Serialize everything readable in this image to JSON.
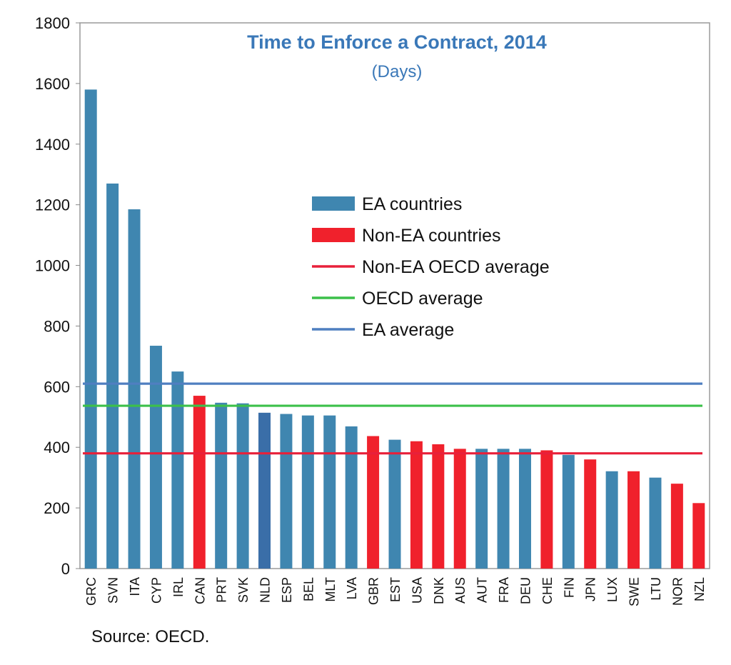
{
  "chart_data": {
    "type": "bar",
    "title": "Time to Enforce a Contract, 2014",
    "subtitle": "(Days)",
    "source": "Source: OECD.",
    "ylim": [
      0,
      1800
    ],
    "yticks": [
      0,
      200,
      400,
      600,
      800,
      1000,
      1200,
      1400,
      1600,
      1800
    ],
    "grid": false,
    "legend_position": "center-right",
    "categories": [
      "GRC",
      "SVN",
      "ITA",
      "CYP",
      "IRL",
      "CAN",
      "PRT",
      "SVK",
      "NLD",
      "ESP",
      "BEL",
      "MLT",
      "LVA",
      "GBR",
      "EST",
      "USA",
      "DNK",
      "AUS",
      "AUT",
      "FRA",
      "DEU",
      "CHE",
      "FIN",
      "JPN",
      "LUX",
      "SWE",
      "LTU",
      "NOR",
      "NZL"
    ],
    "values": [
      1580,
      1270,
      1185,
      735,
      650,
      570,
      547,
      545,
      514,
      510,
      505,
      505,
      469,
      437,
      425,
      420,
      410,
      395,
      395,
      395,
      395,
      390,
      375,
      360,
      321,
      321,
      300,
      280,
      216
    ],
    "groups": [
      "EA",
      "EA",
      "EA",
      "EA",
      "EA",
      "Non-EA",
      "EA",
      "EA",
      "EA",
      "EA",
      "EA",
      "EA",
      "EA",
      "Non-EA",
      "EA",
      "Non-EA",
      "Non-EA",
      "Non-EA",
      "EA",
      "EA",
      "EA",
      "Non-EA",
      "EA",
      "Non-EA",
      "EA",
      "Non-EA",
      "EA",
      "Non-EA",
      "Non-EA"
    ],
    "reference_lines": [
      {
        "name": "EA average",
        "value": 610,
        "color": "#4f7fc0"
      },
      {
        "name": "OECD average",
        "value": 537,
        "color": "#3cc04a"
      },
      {
        "name": "Non-EA OECD average",
        "value": 380,
        "color": "#e8203a"
      }
    ],
    "legend": [
      {
        "label": "EA countries",
        "kind": "bar",
        "color": "#3f86b0"
      },
      {
        "label": "Non-EA countries",
        "kind": "bar",
        "color": "#f0212c"
      },
      {
        "label": "Non-EA OECD average",
        "kind": "line",
        "color": "#e8203a"
      },
      {
        "label": "OECD average",
        "kind": "line",
        "color": "#3cc04a"
      },
      {
        "label": "EA average",
        "kind": "line",
        "color": "#4f7fc0"
      }
    ],
    "colors": {
      "EA": "#3f86b0",
      "Non-EA": "#f0212c",
      "NLD": "#3a6ea8",
      "title": "#3a78b8",
      "axis": "#888888"
    }
  }
}
